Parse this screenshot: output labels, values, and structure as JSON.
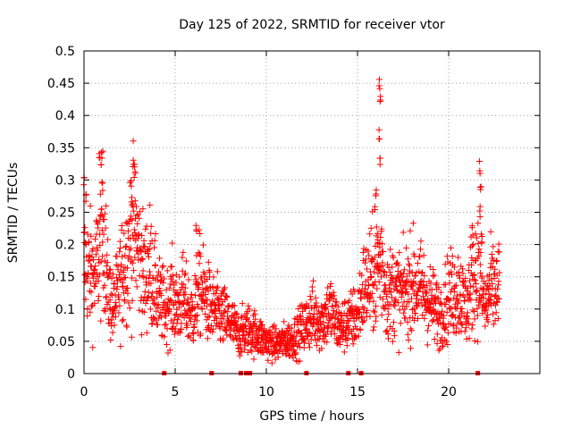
{
  "chart_data": {
    "type": "scatter",
    "title": "Day 125 of 2022, SRMTID for receiver vtor",
    "xlabel": "GPS time / hours",
    "ylabel": "SRMTID / TECUs",
    "xlim": [
      0,
      25
    ],
    "ylim": [
      0,
      0.5
    ],
    "x_ticks": [
      0,
      5,
      10,
      15,
      20
    ],
    "y_ticks": [
      0,
      0.05,
      0.1,
      0.15,
      0.2,
      0.25,
      0.3,
      0.35,
      0.4,
      0.45,
      0.5
    ],
    "x_tick_labels": [
      "0",
      "5",
      "10",
      "15",
      "20"
    ],
    "y_tick_labels": [
      "0",
      "0.05",
      "0.1",
      "0.15",
      "0.2",
      "0.25",
      "0.3",
      "0.35",
      "0.4",
      "0.45",
      "0.5"
    ],
    "grid": true,
    "marker": "+",
    "color": "#ff0000",
    "series": [
      {
        "name": "SRMTID",
        "trend": [
          [
            0.0,
            0.17
          ],
          [
            0.3,
            0.16
          ],
          [
            0.6,
            0.15
          ],
          [
            0.9,
            0.2
          ],
          [
            1.1,
            0.23
          ],
          [
            1.3,
            0.13
          ],
          [
            1.6,
            0.1
          ],
          [
            1.9,
            0.13
          ],
          [
            2.2,
            0.17
          ],
          [
            2.5,
            0.2
          ],
          [
            2.8,
            0.22
          ],
          [
            3.0,
            0.19
          ],
          [
            3.3,
            0.15
          ],
          [
            3.6,
            0.17
          ],
          [
            3.9,
            0.13
          ],
          [
            4.2,
            0.11
          ],
          [
            4.5,
            0.1
          ],
          [
            4.8,
            0.12
          ],
          [
            5.1,
            0.1
          ],
          [
            5.4,
            0.12
          ],
          [
            5.7,
            0.1
          ],
          [
            6.0,
            0.09
          ],
          [
            6.3,
            0.14
          ],
          [
            6.6,
            0.12
          ],
          [
            7.0,
            0.1
          ],
          [
            7.5,
            0.09
          ],
          [
            8.0,
            0.08
          ],
          [
            8.5,
            0.06
          ],
          [
            9.0,
            0.07
          ],
          [
            9.5,
            0.06
          ],
          [
            10.0,
            0.05
          ],
          [
            10.5,
            0.045
          ],
          [
            11.0,
            0.05
          ],
          [
            11.5,
            0.055
          ],
          [
            12.0,
            0.07
          ],
          [
            12.5,
            0.09
          ],
          [
            13.0,
            0.08
          ],
          [
            13.5,
            0.1
          ],
          [
            14.0,
            0.07
          ],
          [
            14.5,
            0.08
          ],
          [
            15.0,
            0.09
          ],
          [
            15.3,
            0.13
          ],
          [
            15.6,
            0.14
          ],
          [
            16.0,
            0.15
          ],
          [
            16.3,
            0.18
          ],
          [
            16.6,
            0.12
          ],
          [
            17.0,
            0.13
          ],
          [
            17.5,
            0.12
          ],
          [
            18.0,
            0.14
          ],
          [
            18.5,
            0.13
          ],
          [
            19.0,
            0.11
          ],
          [
            19.5,
            0.09
          ],
          [
            20.0,
            0.12
          ],
          [
            20.5,
            0.13
          ],
          [
            21.0,
            0.1
          ],
          [
            21.3,
            0.15
          ],
          [
            21.6,
            0.16
          ],
          [
            22.0,
            0.1
          ],
          [
            22.3,
            0.13
          ],
          [
            22.8,
            0.13
          ]
        ],
        "spikes": [
          [
            0.0,
            0.31
          ],
          [
            0.1,
            0.28
          ],
          [
            0.85,
            0.35
          ],
          [
            0.95,
            0.34
          ],
          [
            1.0,
            0.3
          ],
          [
            2.6,
            0.3
          ],
          [
            2.7,
            0.34
          ],
          [
            2.8,
            0.33
          ],
          [
            2.65,
            0.28
          ],
          [
            6.15,
            0.24
          ],
          [
            16.2,
            0.46
          ],
          [
            16.25,
            0.43
          ],
          [
            16.2,
            0.38
          ],
          [
            16.25,
            0.34
          ],
          [
            16.0,
            0.29
          ],
          [
            15.95,
            0.26
          ],
          [
            16.1,
            0.22
          ],
          [
            21.7,
            0.33
          ],
          [
            21.75,
            0.3
          ],
          [
            21.7,
            0.26
          ],
          [
            21.8,
            0.22
          ],
          [
            21.3,
            0.23
          ]
        ],
        "zero_markers": [
          4.4,
          7.0,
          8.6,
          8.9,
          9.1,
          12.2,
          14.5,
          15.2,
          21.6
        ]
      }
    ]
  }
}
